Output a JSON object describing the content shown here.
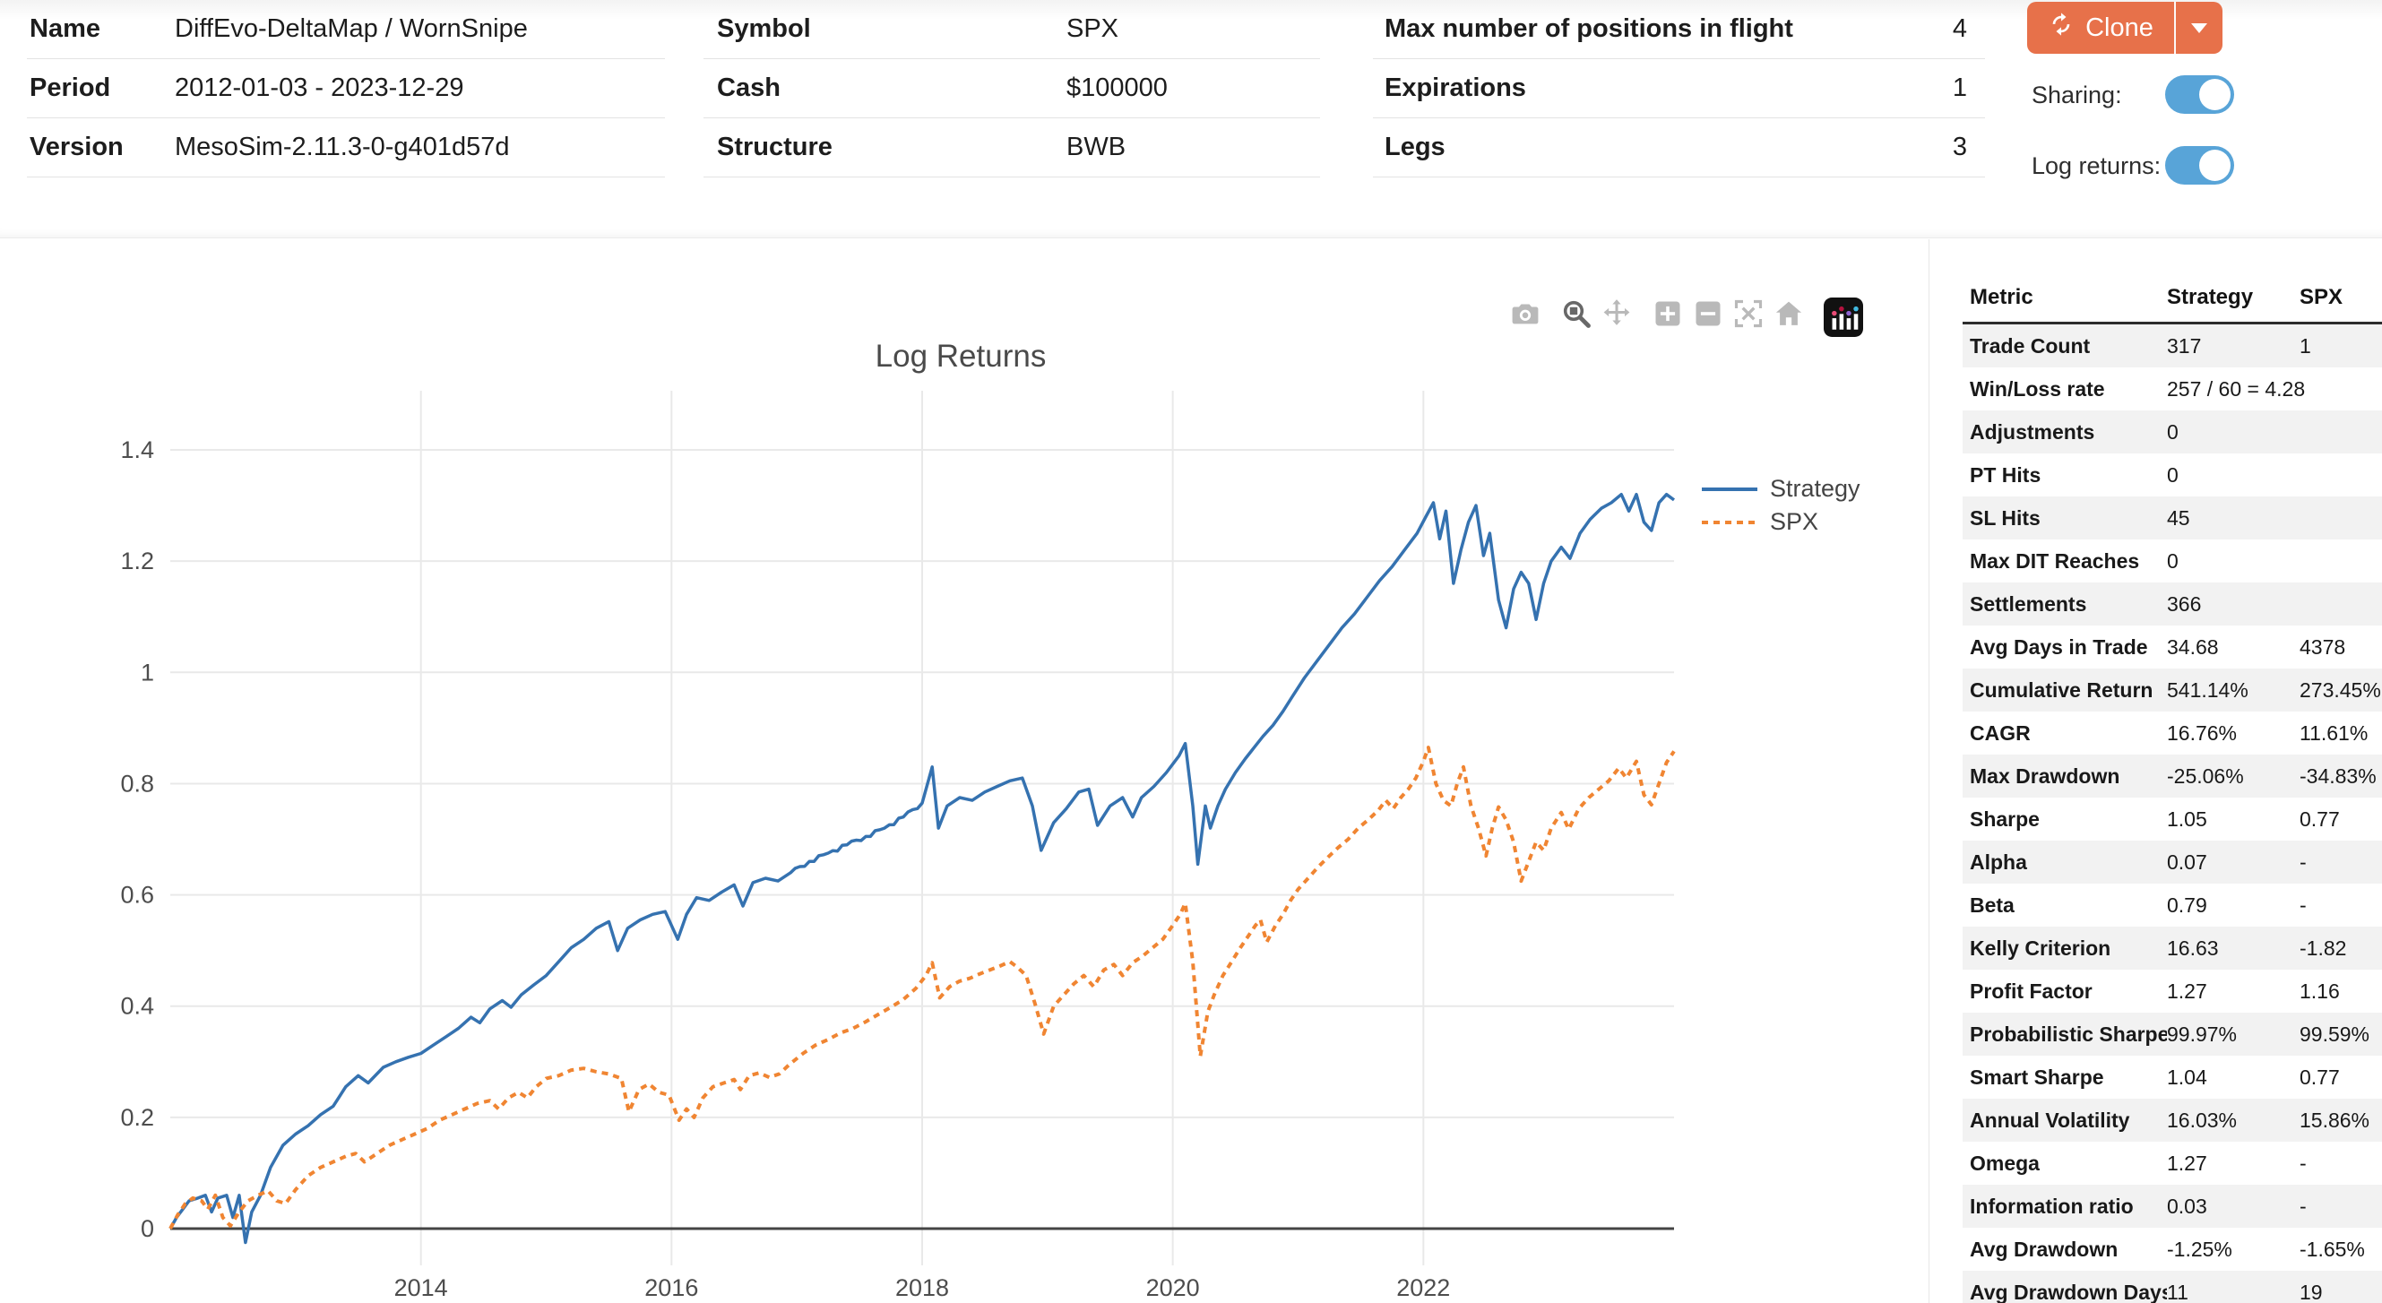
{
  "header": {
    "tables": [
      {
        "rows": [
          {
            "label": "Name",
            "value": "DiffEvo-DeltaMap / WornSnipe"
          },
          {
            "label": "Period",
            "value": "2012-01-03 - 2023-12-29"
          },
          {
            "label": "Version",
            "value": "MesoSim-2.11.3-0-g401d57d"
          }
        ]
      },
      {
        "rows": [
          {
            "label": "Symbol",
            "value": "SPX"
          },
          {
            "label": "Cash",
            "value": "$100000"
          },
          {
            "label": "Structure",
            "value": "BWB"
          }
        ]
      },
      {
        "rows": [
          {
            "label": "Max number of positions in flight",
            "value": "4"
          },
          {
            "label": "Expirations",
            "value": "1"
          },
          {
            "label": "Legs",
            "value": "3"
          }
        ]
      }
    ],
    "clone_label": "Clone",
    "clone_icon": "refresh-icon",
    "clone_caret_icon": "caret-down-icon",
    "toggles": [
      {
        "label": "Sharing:",
        "state": "on"
      },
      {
        "label": "Log returns:",
        "state": "on"
      }
    ]
  },
  "colors": {
    "accent_orange": "#E7714A",
    "toggle_blue": "#58A4D8",
    "strategy_blue": "#3572B0",
    "spx_orange": "#F08532",
    "grid": "#e9e9e9",
    "zeroline": "#444444",
    "tick_text": "#4d4d4d",
    "stripe": "#f2f2f2"
  },
  "modebar": {
    "icons": [
      {
        "name": "camera-snapshot",
        "group": 0,
        "active": false
      },
      {
        "name": "zoom",
        "group": 1,
        "active": true
      },
      {
        "name": "pan",
        "group": 1,
        "active": false
      },
      {
        "name": "zoom-in",
        "group": 2,
        "active": false
      },
      {
        "name": "zoom-out",
        "group": 2,
        "active": false
      },
      {
        "name": "autoscale",
        "group": 2,
        "active": false
      },
      {
        "name": "reset-home",
        "group": 2,
        "active": false
      },
      {
        "name": "plotly-logo",
        "group": 3,
        "active": false
      }
    ]
  },
  "chart_data": {
    "type": "line",
    "title": "Log Returns",
    "xlabel": "",
    "ylabel": "",
    "x_range": [
      2012.0,
      2024.05
    ],
    "y_range": [
      -0.066,
      1.52
    ],
    "x_ticks": [
      2014,
      2016,
      2018,
      2020,
      2022
    ],
    "x_tick_labels": [
      "2014",
      "2016",
      "2018",
      "2020",
      "2022"
    ],
    "y_ticks": [
      0,
      0.2,
      0.4,
      0.6,
      0.8,
      1,
      1.2,
      1.4
    ],
    "y_tick_labels": [
      "0",
      "0.2",
      "0.4",
      "0.6",
      "0.8",
      "1",
      "1.2",
      "1.4"
    ],
    "grid": true,
    "zeroline": true,
    "legend_position": "top-right-outside",
    "series": [
      {
        "name": "Strategy",
        "color": "#3572B0",
        "style": "solid",
        "x": [
          2012.0,
          2012.05,
          2012.1,
          2012.15,
          2012.22,
          2012.28,
          2012.33,
          2012.38,
          2012.45,
          2012.5,
          2012.55,
          2012.6,
          2012.65,
          2012.72,
          2012.8,
          2012.9,
          2013.0,
          2013.1,
          2013.2,
          2013.3,
          2013.4,
          2013.5,
          2013.58,
          2013.7,
          2013.8,
          2013.9,
          2014.0,
          2014.1,
          2014.2,
          2014.3,
          2014.4,
          2014.47,
          2014.55,
          2014.65,
          2014.72,
          2014.8,
          2014.9,
          2015.0,
          2015.1,
          2015.2,
          2015.3,
          2015.4,
          2015.5,
          2015.57,
          2015.65,
          2015.75,
          2015.85,
          2015.95,
          2016.05,
          2016.12,
          2016.2,
          2016.3,
          2016.4,
          2016.5,
          2016.57,
          2016.65,
          2016.75,
          2016.85,
          2016.95,
          2017.1,
          2017.25,
          2017.4,
          2017.55,
          2017.7,
          2017.85,
          2018.0,
          2018.08,
          2018.13,
          2018.2,
          2018.3,
          2018.4,
          2018.5,
          2018.6,
          2018.7,
          2018.8,
          2018.88,
          2018.95,
          2019.05,
          2019.15,
          2019.25,
          2019.33,
          2019.4,
          2019.5,
          2019.6,
          2019.68,
          2019.75,
          2019.85,
          2019.95,
          2020.05,
          2020.1,
          2020.16,
          2020.2,
          2020.26,
          2020.3,
          2020.36,
          2020.42,
          2020.5,
          2020.58,
          2020.65,
          2020.72,
          2020.8,
          2020.88,
          2020.95,
          2021.05,
          2021.15,
          2021.25,
          2021.35,
          2021.45,
          2021.55,
          2021.65,
          2021.75,
          2021.85,
          2021.95,
          2022.02,
          2022.08,
          2022.13,
          2022.18,
          2022.24,
          2022.3,
          2022.36,
          2022.42,
          2022.48,
          2022.53,
          2022.6,
          2022.66,
          2022.72,
          2022.78,
          2022.84,
          2022.9,
          2022.96,
          2023.02,
          2023.1,
          2023.17,
          2023.25,
          2023.33,
          2023.42,
          2023.5,
          2023.58,
          2023.64,
          2023.7,
          2023.76,
          2023.82,
          2023.88,
          2023.94,
          2024.0
        ],
        "y": [
          0,
          0.02,
          0.035,
          0.05,
          0.055,
          0.06,
          0.03,
          0.055,
          0.06,
          0.02,
          0.06,
          -0.025,
          0.03,
          0.06,
          0.11,
          0.15,
          0.17,
          0.185,
          0.205,
          0.22,
          0.255,
          0.275,
          0.262,
          0.29,
          0.3,
          0.308,
          0.315,
          0.33,
          0.345,
          0.36,
          0.38,
          0.37,
          0.395,
          0.41,
          0.398,
          0.42,
          0.438,
          0.455,
          0.48,
          0.505,
          0.52,
          0.54,
          0.552,
          0.5,
          0.54,
          0.555,
          0.565,
          0.57,
          0.52,
          0.565,
          0.595,
          0.59,
          0.605,
          0.618,
          0.58,
          0.622,
          0.63,
          0.625,
          0.64,
          0.66,
          0.675,
          0.69,
          0.705,
          0.72,
          0.74,
          0.765,
          0.83,
          0.72,
          0.76,
          0.775,
          0.77,
          0.785,
          0.795,
          0.805,
          0.81,
          0.76,
          0.68,
          0.73,
          0.755,
          0.785,
          0.79,
          0.725,
          0.76,
          0.775,
          0.74,
          0.775,
          0.795,
          0.82,
          0.85,
          0.872,
          0.76,
          0.655,
          0.76,
          0.72,
          0.76,
          0.79,
          0.82,
          0.845,
          0.865,
          0.885,
          0.905,
          0.93,
          0.955,
          0.99,
          1.02,
          1.05,
          1.08,
          1.105,
          1.135,
          1.165,
          1.19,
          1.22,
          1.25,
          1.28,
          1.305,
          1.24,
          1.29,
          1.16,
          1.22,
          1.27,
          1.3,
          1.21,
          1.25,
          1.13,
          1.08,
          1.15,
          1.18,
          1.16,
          1.095,
          1.16,
          1.2,
          1.225,
          1.205,
          1.25,
          1.275,
          1.295,
          1.305,
          1.32,
          1.29,
          1.32,
          1.27,
          1.255,
          1.305,
          1.32,
          1.31
        ]
      },
      {
        "name": "SPX",
        "color": "#F08532",
        "style": "dashed",
        "x": [
          2012.0,
          2012.06,
          2012.12,
          2012.18,
          2012.25,
          2012.3,
          2012.36,
          2012.42,
          2012.48,
          2012.55,
          2012.62,
          2012.7,
          2012.78,
          2012.85,
          2012.92,
          2013.0,
          2013.1,
          2013.2,
          2013.3,
          2013.4,
          2013.48,
          2013.55,
          2013.65,
          2013.75,
          2013.85,
          2013.95,
          2014.05,
          2014.15,
          2014.25,
          2014.35,
          2014.45,
          2014.55,
          2014.62,
          2014.7,
          2014.78,
          2014.85,
          2014.92,
          2015.0,
          2015.1,
          2015.2,
          2015.3,
          2015.4,
          2015.5,
          2015.6,
          2015.66,
          2015.74,
          2015.82,
          2015.9,
          2015.98,
          2016.06,
          2016.12,
          2016.18,
          2016.25,
          2016.33,
          2016.42,
          2016.5,
          2016.55,
          2016.62,
          2016.7,
          2016.78,
          2016.86,
          2016.94,
          2017.05,
          2017.15,
          2017.25,
          2017.35,
          2017.45,
          2017.55,
          2017.65,
          2017.75,
          2017.85,
          2017.95,
          2018.03,
          2018.08,
          2018.14,
          2018.22,
          2018.3,
          2018.38,
          2018.46,
          2018.54,
          2018.62,
          2018.7,
          2018.76,
          2018.83,
          2018.9,
          2018.97,
          2019.05,
          2019.13,
          2019.21,
          2019.29,
          2019.37,
          2019.45,
          2019.53,
          2019.6,
          2019.68,
          2019.76,
          2019.84,
          2019.92,
          2020.0,
          2020.06,
          2020.1,
          2020.16,
          2020.22,
          2020.28,
          2020.33,
          2020.4,
          2020.47,
          2020.54,
          2020.6,
          2020.66,
          2020.7,
          2020.75,
          2020.82,
          2020.88,
          2020.94,
          2021.0,
          2021.08,
          2021.16,
          2021.24,
          2021.32,
          2021.4,
          2021.48,
          2021.56,
          2021.64,
          2021.7,
          2021.76,
          2021.82,
          2021.88,
          2021.94,
          2022.0,
          2022.04,
          2022.1,
          2022.16,
          2022.22,
          2022.27,
          2022.32,
          2022.38,
          2022.44,
          2022.5,
          2022.55,
          2022.6,
          2022.66,
          2022.72,
          2022.78,
          2022.84,
          2022.9,
          2022.96,
          2023.02,
          2023.1,
          2023.16,
          2023.24,
          2023.32,
          2023.4,
          2023.48,
          2023.56,
          2023.62,
          2023.7,
          2023.76,
          2023.82,
          2023.88,
          2023.94,
          2024.0
        ],
        "y": [
          0,
          0.025,
          0.045,
          0.055,
          0.05,
          0.035,
          0.06,
          0.02,
          0.005,
          0.03,
          0.05,
          0.06,
          0.068,
          0.05,
          0.045,
          0.07,
          0.095,
          0.11,
          0.12,
          0.13,
          0.135,
          0.12,
          0.135,
          0.15,
          0.16,
          0.17,
          0.18,
          0.195,
          0.205,
          0.215,
          0.225,
          0.23,
          0.215,
          0.235,
          0.245,
          0.235,
          0.255,
          0.27,
          0.275,
          0.285,
          0.288,
          0.282,
          0.278,
          0.27,
          0.21,
          0.25,
          0.26,
          0.245,
          0.24,
          0.195,
          0.215,
          0.2,
          0.235,
          0.255,
          0.262,
          0.268,
          0.25,
          0.275,
          0.28,
          0.272,
          0.278,
          0.295,
          0.315,
          0.33,
          0.34,
          0.352,
          0.36,
          0.372,
          0.385,
          0.398,
          0.412,
          0.432,
          0.455,
          0.478,
          0.415,
          0.435,
          0.445,
          0.45,
          0.458,
          0.465,
          0.472,
          0.48,
          0.47,
          0.455,
          0.405,
          0.35,
          0.4,
          0.42,
          0.44,
          0.455,
          0.435,
          0.465,
          0.475,
          0.455,
          0.478,
          0.49,
          0.505,
          0.52,
          0.545,
          0.565,
          0.585,
          0.48,
          0.31,
          0.39,
          0.42,
          0.455,
          0.48,
          0.505,
          0.525,
          0.545,
          0.555,
          0.515,
          0.545,
          0.565,
          0.59,
          0.61,
          0.63,
          0.65,
          0.668,
          0.685,
          0.7,
          0.72,
          0.735,
          0.752,
          0.77,
          0.755,
          0.775,
          0.79,
          0.81,
          0.84,
          0.865,
          0.8,
          0.77,
          0.76,
          0.8,
          0.83,
          0.76,
          0.72,
          0.67,
          0.72,
          0.758,
          0.735,
          0.695,
          0.625,
          0.66,
          0.695,
          0.68,
          0.72,
          0.748,
          0.718,
          0.755,
          0.775,
          0.79,
          0.805,
          0.828,
          0.81,
          0.84,
          0.78,
          0.762,
          0.8,
          0.838,
          0.858
        ]
      }
    ]
  },
  "metrics": {
    "columns": [
      "Metric",
      "Strategy",
      "SPX"
    ],
    "rows": [
      [
        "Trade Count",
        "317",
        "1"
      ],
      [
        "Win/Loss rate",
        "257 / 60 = 4.28",
        ""
      ],
      [
        "Adjustments",
        "0",
        ""
      ],
      [
        "PT Hits",
        "0",
        ""
      ],
      [
        "SL Hits",
        "45",
        ""
      ],
      [
        "Max DIT Reaches",
        "0",
        ""
      ],
      [
        "Settlements",
        "366",
        ""
      ],
      [
        "Avg Days in Trade",
        "34.68",
        "4378"
      ],
      [
        "Cumulative Return",
        "541.14%",
        "273.45%"
      ],
      [
        "CAGR",
        "16.76%",
        "11.61%"
      ],
      [
        "Max Drawdown",
        "-25.06%",
        "-34.83%"
      ],
      [
        "Sharpe",
        "1.05",
        "0.77"
      ],
      [
        "Alpha",
        "0.07",
        "-"
      ],
      [
        "Beta",
        "0.79",
        "-"
      ],
      [
        "Kelly Criterion",
        "16.63",
        "-1.82"
      ],
      [
        "Profit Factor",
        "1.27",
        "1.16"
      ],
      [
        "Probabilistic Sharpe",
        "99.97%",
        "99.59%"
      ],
      [
        "Smart Sharpe",
        "1.04",
        "0.77"
      ],
      [
        "Annual Volatility",
        "16.03%",
        "15.86%"
      ],
      [
        "Omega",
        "1.27",
        "-"
      ],
      [
        "Information ratio",
        "0.03",
        "-"
      ],
      [
        "Avg Drawdown",
        "-1.25%",
        "-1.65%"
      ],
      [
        "Avg Drawdown Days",
        "11",
        "19"
      ]
    ]
  }
}
